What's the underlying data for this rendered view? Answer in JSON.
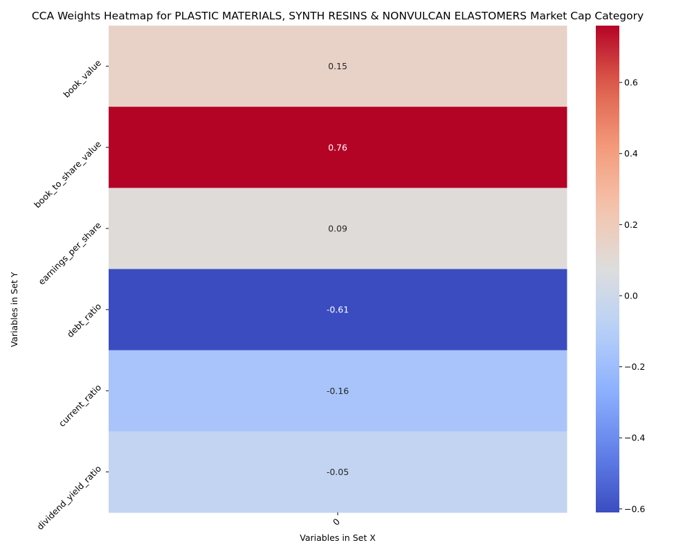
{
  "chart_data": {
    "type": "heatmap",
    "title": "CCA Weights Heatmap for PLASTIC MATERIALS, SYNTH RESINS & NONVULCAN ELASTOMERS Market Cap Category",
    "xlabel": "Variables in Set X",
    "ylabel": "Variables in Set Y",
    "x_categories": [
      "0"
    ],
    "y_categories": [
      "book_value",
      "book_to_share_value",
      "earnings_per_share",
      "debt_ratio",
      "current_ratio",
      "dividend_yield_ratio"
    ],
    "values": [
      [
        0.15
      ],
      [
        0.76
      ],
      [
        0.09
      ],
      [
        -0.61
      ],
      [
        -0.16
      ],
      [
        -0.05
      ]
    ],
    "value_labels": [
      "0.15",
      "0.76",
      "0.09",
      "-0.61",
      "-0.16",
      "-0.05"
    ],
    "colormap": "coolwarm",
    "colorbar": {
      "vmin": -0.61,
      "vmax": 0.76,
      "ticks": [
        -0.6,
        -0.4,
        -0.2,
        0.0,
        0.2,
        0.4,
        0.6
      ],
      "tick_labels": [
        "−0.6",
        "−0.4",
        "−0.2",
        "0.0",
        "0.2",
        "0.4",
        "0.6"
      ],
      "placement": "right"
    }
  }
}
